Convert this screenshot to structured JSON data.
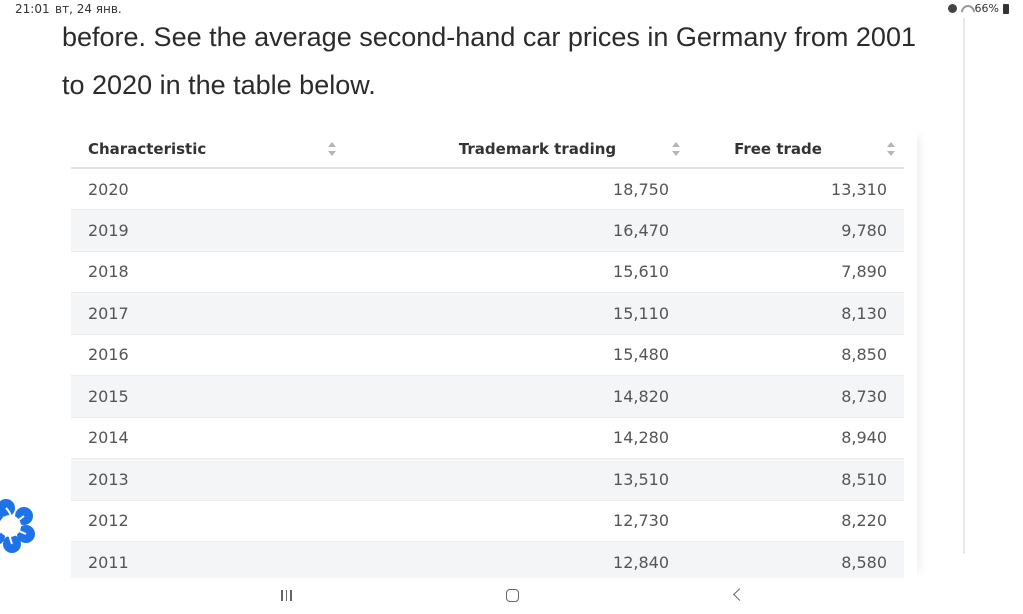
{
  "status_bar": {
    "time": "21:01",
    "date": "вт, 24 янв.",
    "battery": "66%"
  },
  "article": {
    "intro_line1": "before. See the average second-hand car prices in Germany from 2001",
    "intro_line2": "to 2020 in the table below."
  },
  "table": {
    "headers": {
      "characteristic": "Characteristic",
      "trademark": "Trademark trading",
      "free": "Free trade"
    },
    "rows": [
      {
        "year": "2020",
        "trademark": "18,750",
        "free": "13,310"
      },
      {
        "year": "2019",
        "trademark": "16,470",
        "free": "9,780"
      },
      {
        "year": "2018",
        "trademark": "15,610",
        "free": "7,890"
      },
      {
        "year": "2017",
        "trademark": "15,110",
        "free": "8,130"
      },
      {
        "year": "2016",
        "trademark": "15,480",
        "free": "8,850"
      },
      {
        "year": "2015",
        "trademark": "14,820",
        "free": "8,730"
      },
      {
        "year": "2014",
        "trademark": "14,280",
        "free": "8,940"
      },
      {
        "year": "2013",
        "trademark": "13,510",
        "free": "8,510"
      },
      {
        "year": "2012",
        "trademark": "12,730",
        "free": "8,220"
      },
      {
        "year": "2011",
        "trademark": "12,840",
        "free": "8,580"
      }
    ]
  },
  "icons": {
    "status": [
      "alarm-icon",
      "wifi-icon",
      "battery-icon"
    ],
    "nav": [
      "recent-apps-icon",
      "home-icon",
      "back-icon"
    ],
    "floating": "blue-flower-app-icon",
    "sort": "sort-arrows-icon"
  },
  "colors": {
    "floating_icon": "#1f73e8",
    "striped_row": "#f4f5f7",
    "text": "#2b2b2b"
  }
}
